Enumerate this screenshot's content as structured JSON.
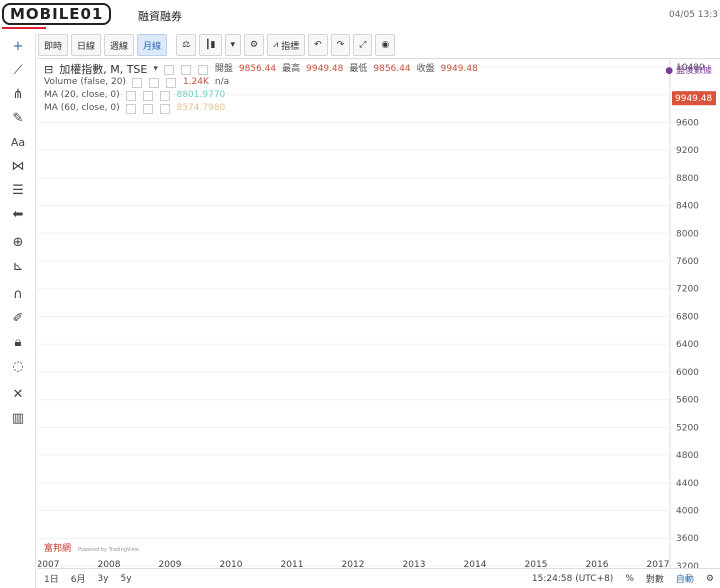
{
  "header": {
    "logo_text": "MOBILE01",
    "title": "融資融券",
    "datetime": "04/05 13:3"
  },
  "toolbar": {
    "intervals": [
      "即時",
      "日線",
      "週線",
      "月線"
    ],
    "active_interval": "月線",
    "indicators_label": "指標"
  },
  "legend": {
    "symbol_title": "加權指數, M, TSE",
    "open_label": "開盤",
    "open_value": "9856.44",
    "high_label": "最高",
    "high_value": "9949.48",
    "low_label": "最低",
    "low_value": "9856.44",
    "close_label": "收盤",
    "close_value": "9949.48",
    "volume_label": "Volume (false, 20)",
    "volume_value": "1.24K",
    "volume_na": "n/a",
    "ma20_label": "MA (20, close, 0)",
    "ma20_value": "8801.9770",
    "ma60_label": "MA (60, close, 0)",
    "ma60_value": "8574.7980"
  },
  "compare_label": "● 盤後數據",
  "colors": {
    "up": "#c6523e",
    "down": "#6ba98a",
    "ma20": "#6fcfc0",
    "ma60": "#e6c38a",
    "vol_up": "#f0b7b3",
    "vol_down": "#b8dcc7",
    "last": "#d8533a"
  },
  "chart_data": {
    "type": "candlestick",
    "ylim": [
      3300,
      10400
    ],
    "y_ticks": [
      10400,
      10000,
      9600,
      9200,
      8800,
      8400,
      8000,
      7600,
      7200,
      6800,
      6400,
      6000,
      5600,
      5200,
      4800,
      4400,
      4000,
      3600,
      3200
    ],
    "last_price": "9949.48",
    "x_labels": [
      "2007",
      "2008",
      "2009",
      "2010",
      "2011",
      "2012",
      "2013",
      "2014",
      "2015",
      "2016",
      "2017"
    ],
    "watermark": "富邦網",
    "tv_credit": "Powered by TradingView"
  },
  "bottom": {
    "ranges": [
      "1日",
      "6月",
      "3y",
      "5y"
    ],
    "clock": "15:24:58 (UTC+8)",
    "pct": "%",
    "log": "對數",
    "auto": "自動"
  }
}
